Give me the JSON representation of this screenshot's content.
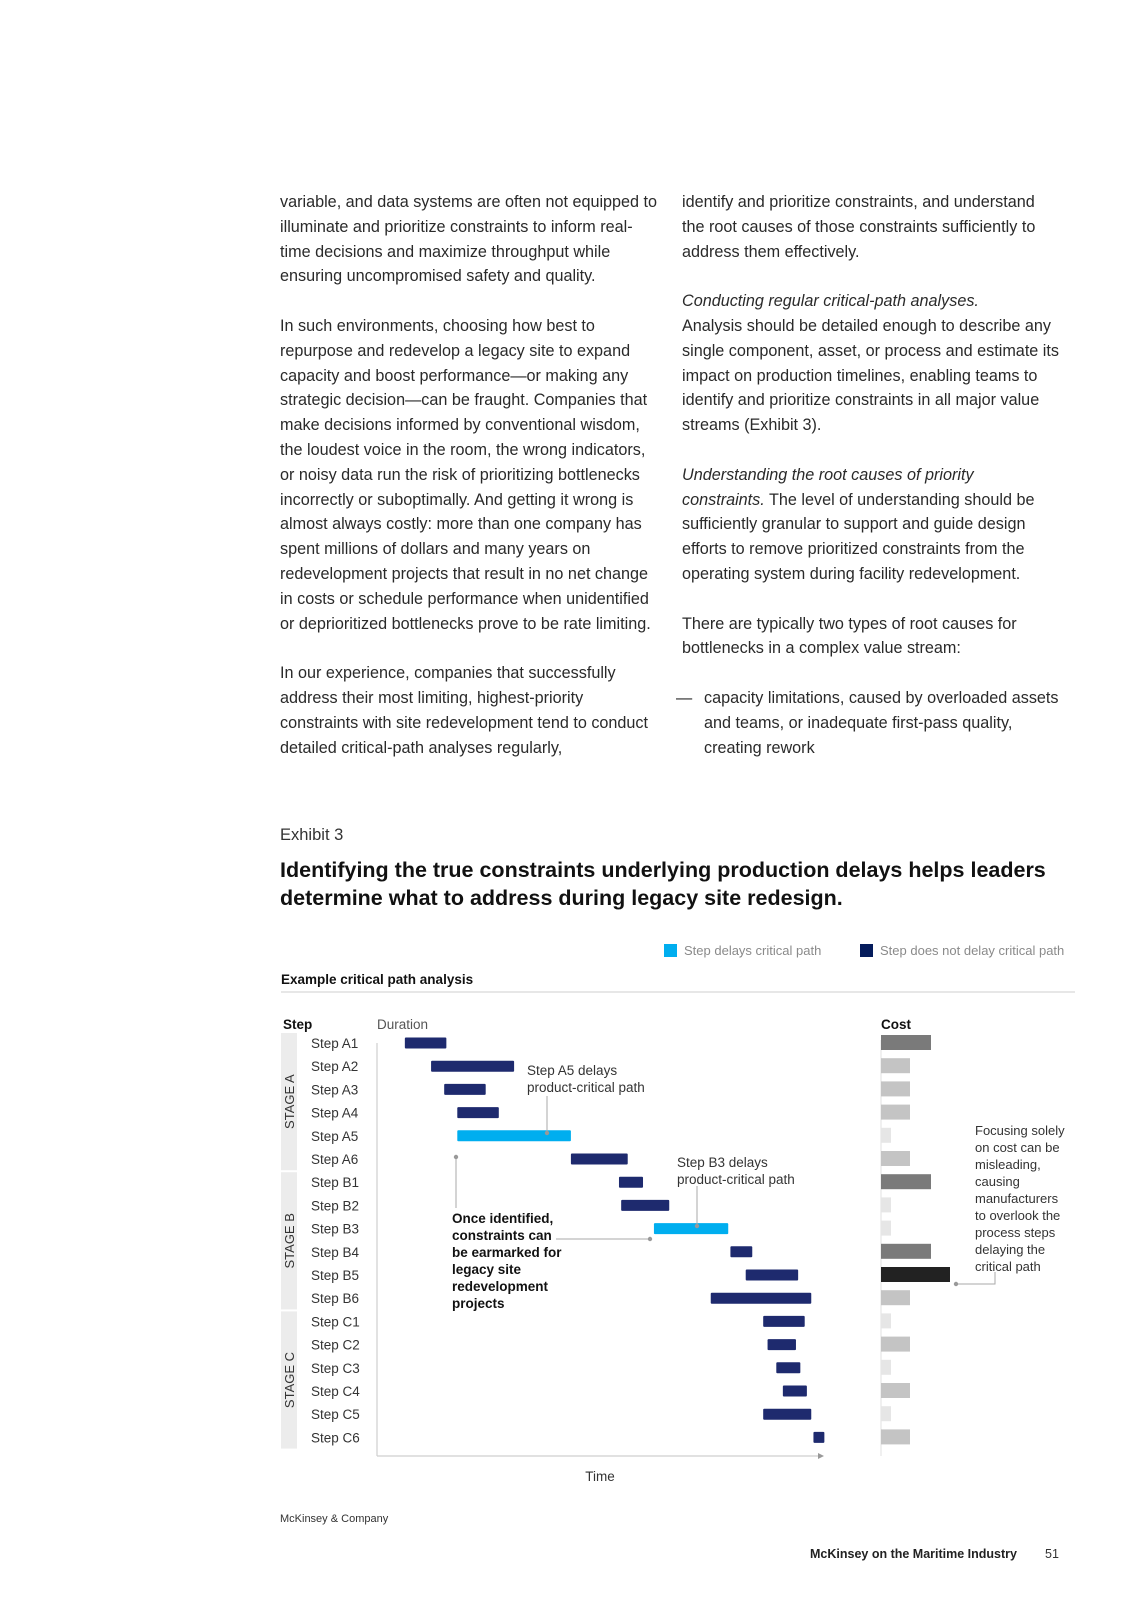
{
  "body": {
    "left_column": [
      "variable, and data systems are often not equipped to illuminate and prioritize constraints to inform real-time decisions and maximize throughput while ensuring uncompromised safety and quality.",
      "In such environments, choosing how best to repurpose and redevelop a legacy site to expand capacity and boost performance—or making any strategic decision—can be fraught. Companies that make decisions informed by conventional wisdom, the loudest voice in the room, the wrong indicators, or noisy data run the risk of prioritizing bottlenecks incorrectly or suboptimally. And getting it wrong is almost always costly: more than one company has spent millions of dollars and many years on redevelopment projects that result in no net change in costs or schedule performance when unidentified or deprioritized bottlenecks prove to be rate limiting.",
      "In our experience, companies that successfully address their most limiting, highest-priority constraints with site redevelopment tend to conduct detailed critical-path analyses regularly,"
    ],
    "right_column": {
      "para1": "identify and prioritize constraints, and understand the root causes of those constraints sufficiently to address them effectively.",
      "para2_italic": "Conducting regular critical-path analyses.",
      "para2_rest": "Analysis should be detailed enough to describe any single component, asset, or process and estimate its impact on production timelines, enabling teams to identify and prioritize constraints in all major value streams (Exhibit 3).",
      "para3_italic": "Understanding the root causes of priority constraints.",
      "para3_rest": " The level of understanding should be sufficiently granular to support and guide design efforts to remove prioritized constraints from the operating system during facility redevelopment.",
      "para4": "There are typically two types of root causes for bottlenecks in a complex value stream:",
      "bullet_dash": "—",
      "bullet1": "capacity limitations, caused by overloaded assets and teams, or inadequate first-pass quality, creating rework"
    }
  },
  "exhibit": {
    "label": "Exhibit 3",
    "title": "Identifying the true constraints underlying production delays helps leaders determine what to address during legacy site redesign."
  },
  "chart_data": {
    "type": "gantt",
    "subtitle": "Example critical path analysis",
    "legend": [
      {
        "label": "Step delays critical path",
        "color": "#00aeef"
      },
      {
        "label": "Step does not delay critical path",
        "color": "#051c5c"
      }
    ],
    "step_header": "Step",
    "duration_header": "Duration",
    "cost_header": "Cost",
    "x_axis_label": "Time",
    "stages": [
      {
        "name": "STAGE A",
        "steps": [
          "Step A1",
          "Step A2",
          "Step A3",
          "Step A4",
          "Step A5",
          "Step A6"
        ]
      },
      {
        "name": "STAGE B",
        "steps": [
          "Step B1",
          "Step B2",
          "Step B3",
          "Step B4",
          "Step B5",
          "Step B6"
        ]
      },
      {
        "name": "STAGE C",
        "steps": [
          "Step C1",
          "Step C2",
          "Step C3",
          "Step C4",
          "Step C5",
          "Step C6"
        ]
      }
    ],
    "time_range": [
      0,
      100
    ],
    "tasks": [
      {
        "step": "Step A1",
        "start": 5,
        "end": 14.5,
        "critical": false,
        "cost": 100,
        "cost_shade": "dark"
      },
      {
        "step": "Step A2",
        "start": 11,
        "end": 30,
        "critical": false,
        "cost": 58,
        "cost_shade": "mid"
      },
      {
        "step": "Step A3",
        "start": 14,
        "end": 23.5,
        "critical": false,
        "cost": 58,
        "cost_shade": "mid"
      },
      {
        "step": "Step A4",
        "start": 17,
        "end": 26.5,
        "critical": false,
        "cost": 58,
        "cost_shade": "mid"
      },
      {
        "step": "Step A5",
        "start": 17,
        "end": 43,
        "critical": true,
        "cost": 20,
        "cost_shade": "light"
      },
      {
        "step": "Step A6",
        "start": 43,
        "end": 56,
        "critical": false,
        "cost": 58,
        "cost_shade": "mid"
      },
      {
        "step": "Step B1",
        "start": 54,
        "end": 59.5,
        "critical": false,
        "cost": 100,
        "cost_shade": "dark"
      },
      {
        "step": "Step B2",
        "start": 54.5,
        "end": 65.5,
        "critical": false,
        "cost": 20,
        "cost_shade": "light"
      },
      {
        "step": "Step B3",
        "start": 62,
        "end": 79,
        "critical": true,
        "cost": 20,
        "cost_shade": "light"
      },
      {
        "step": "Step B4",
        "start": 79.5,
        "end": 84.5,
        "critical": false,
        "cost": 100,
        "cost_shade": "dark"
      },
      {
        "step": "Step B5",
        "start": 83,
        "end": 95,
        "critical": false,
        "cost": 138,
        "cost_shade": "black"
      },
      {
        "step": "Step B6",
        "start": 75,
        "end": 98,
        "critical": false,
        "cost": 58,
        "cost_shade": "mid"
      },
      {
        "step": "Step C1",
        "start": 87,
        "end": 96.5,
        "critical": false,
        "cost": 20,
        "cost_shade": "light"
      },
      {
        "step": "Step C2",
        "start": 88,
        "end": 94.5,
        "critical": false,
        "cost": 58,
        "cost_shade": "mid"
      },
      {
        "step": "Step C3",
        "start": 90,
        "end": 95.5,
        "critical": false,
        "cost": 20,
        "cost_shade": "light"
      },
      {
        "step": "Step C4",
        "start": 91.5,
        "end": 97,
        "critical": false,
        "cost": 58,
        "cost_shade": "mid"
      },
      {
        "step": "Step C5",
        "start": 87,
        "end": 98,
        "critical": false,
        "cost": 20,
        "cost_shade": "light"
      },
      {
        "step": "Step C6",
        "start": 98.5,
        "end": 101,
        "critical": false,
        "cost": 58,
        "cost_shade": "mid"
      }
    ],
    "cost_colors": {
      "dark": "#7a7a7a",
      "mid": "#c4c4c4",
      "light": "#e6e6e6",
      "black": "#222222"
    },
    "annotations": {
      "a5": [
        "Step A5 delays",
        "product-critical path"
      ],
      "b3": [
        "Step B3 delays",
        "product-critical path"
      ],
      "once": [
        "Once identified,",
        "constraints can",
        "be earmarked for",
        "legacy site",
        "redevelopment",
        "projects"
      ],
      "cost_note": [
        "Focusing solely",
        "on cost can be",
        "misleading,",
        "causing",
        "manufacturers",
        "to overlook the",
        "process steps",
        "delaying the",
        "critical path"
      ]
    }
  },
  "footer": {
    "source": "McKinsey & Company",
    "publication": "McKinsey on the Maritime Industry",
    "page": "51"
  }
}
